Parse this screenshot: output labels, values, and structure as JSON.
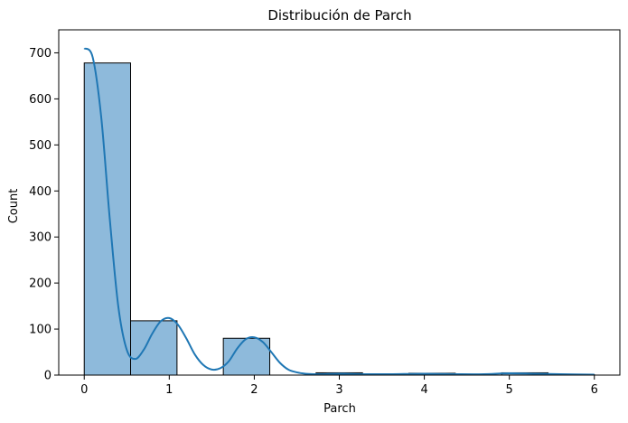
{
  "chart_data": {
    "type": "bar",
    "title": "Distribución de Parch",
    "xlabel": "Parch",
    "ylabel": "Count",
    "xlim": [
      -0.3,
      6.3
    ],
    "ylim": [
      0,
      750
    ],
    "xticks": [
      0,
      1,
      2,
      3,
      4,
      5,
      6
    ],
    "yticks": [
      0,
      100,
      200,
      300,
      400,
      500,
      600,
      700
    ],
    "bins": [
      {
        "x0": 0.0,
        "x1": 0.545,
        "count": 678
      },
      {
        "x0": 0.545,
        "x1": 1.091,
        "count": 118
      },
      {
        "x0": 1.091,
        "x1": 1.636,
        "count": 0
      },
      {
        "x0": 1.636,
        "x1": 2.182,
        "count": 80
      },
      {
        "x0": 2.182,
        "x1": 2.727,
        "count": 0
      },
      {
        "x0": 2.727,
        "x1": 3.273,
        "count": 5
      },
      {
        "x0": 3.273,
        "x1": 3.818,
        "count": 0
      },
      {
        "x0": 3.818,
        "x1": 4.364,
        "count": 4
      },
      {
        "x0": 4.364,
        "x1": 4.909,
        "count": 0
      },
      {
        "x0": 4.909,
        "x1": 5.455,
        "count": 5
      },
      {
        "x0": 5.455,
        "x1": 6.0,
        "count": 1
      }
    ],
    "kde": {
      "x": [
        0.0,
        0.1,
        0.2,
        0.3,
        0.4,
        0.5,
        0.6,
        0.7,
        0.8,
        0.9,
        1.0,
        1.1,
        1.2,
        1.3,
        1.4,
        1.5,
        1.6,
        1.7,
        1.8,
        1.9,
        2.0,
        2.1,
        2.2,
        2.3,
        2.4,
        2.5,
        2.6,
        2.7,
        2.8,
        3.0,
        3.3,
        3.6,
        4.0,
        4.4,
        4.7,
        5.0,
        5.3,
        5.6,
        6.0
      ],
      "y": [
        710,
        690,
        560,
        340,
        150,
        55,
        35,
        55,
        90,
        117,
        124,
        110,
        80,
        45,
        22,
        12,
        15,
        30,
        58,
        78,
        82,
        72,
        50,
        27,
        12,
        6,
        3,
        2,
        2,
        3,
        2,
        2,
        3,
        2,
        2,
        4,
        3,
        2,
        1
      ]
    },
    "grid": false,
    "colors": {
      "bar_fill": "#8ebadb",
      "bar_edge": "#000000",
      "kde_line": "#1f77b4"
    }
  }
}
